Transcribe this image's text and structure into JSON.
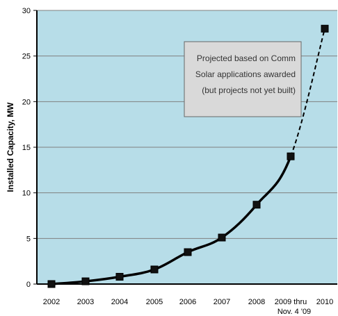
{
  "chart_data": {
    "type": "line",
    "ylabel": "Installed Capacity, MW",
    "xlabel": "",
    "ylim": [
      0,
      30
    ],
    "yticks": [
      "0",
      "5",
      "10",
      "15",
      "20",
      "25",
      "30"
    ],
    "grid": true,
    "categories": [
      {
        "line1": "2002",
        "line2": ""
      },
      {
        "line1": "2003",
        "line2": ""
      },
      {
        "line1": "2004",
        "line2": ""
      },
      {
        "line1": "2005",
        "line2": ""
      },
      {
        "line1": "2006",
        "line2": ""
      },
      {
        "line1": "2007",
        "line2": ""
      },
      {
        "line1": "2008",
        "line2": ""
      },
      {
        "line1": "2009  thru",
        "line2": "Nov. 4 '09"
      },
      {
        "line1": "2010",
        "line2": ""
      }
    ],
    "series": [
      {
        "values": [
          0,
          0.3,
          0.8,
          1.6,
          3.5,
          5.1,
          8.7,
          14,
          28
        ],
        "line_style": [
          "solid",
          "solid",
          "solid",
          "solid",
          "solid",
          "solid",
          "solid",
          "dashed"
        ]
      }
    ],
    "annotation": {
      "lines": [
        "Projected based on Comm",
        "Solar applications awarded",
        "(but projects not yet built)"
      ]
    },
    "colors": {
      "plot_background": "#b7dde8",
      "gridline": "#7f7f7f",
      "line": "#000000",
      "annotation_fill": "#d9d9d9"
    }
  }
}
